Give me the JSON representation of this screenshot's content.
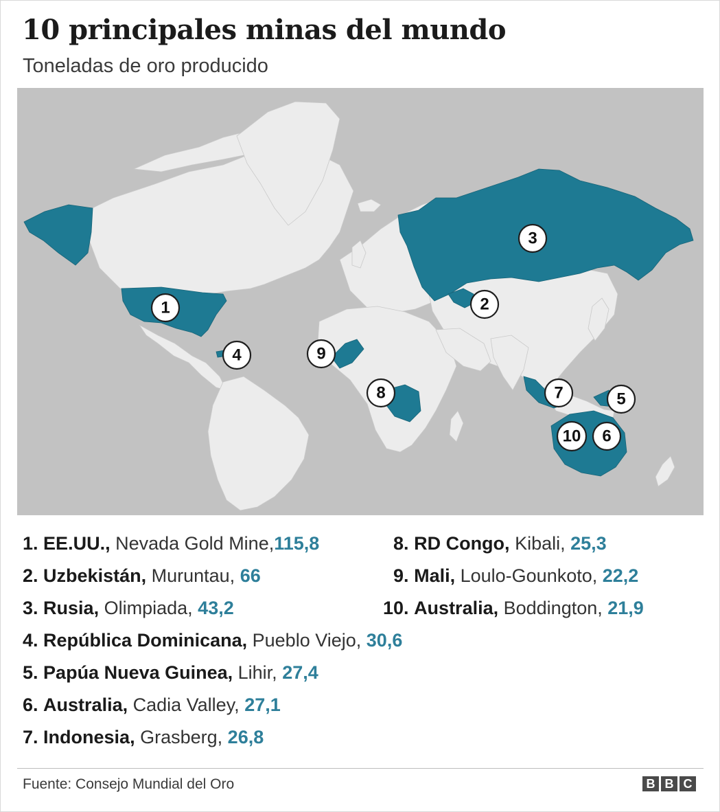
{
  "title": "10 principales minas del mundo",
  "subtitle": "Toneladas de oro producido",
  "colors": {
    "ocean": "#c2c2c2",
    "land": "#ececec",
    "highlight": "#1e7a93",
    "value_text": "#2e7f9a"
  },
  "map": {
    "highlighted_countries": [
      "EE.UU.",
      "Uzbekistán",
      "Rusia",
      "República Dominicana",
      "Papúa Nueva Guinea",
      "Australia",
      "Indonesia",
      "RD Congo",
      "Mali"
    ],
    "markers": [
      "1",
      "2",
      "3",
      "4",
      "5",
      "6",
      "7",
      "8",
      "9",
      "10"
    ]
  },
  "mines": [
    {
      "rank": "1.",
      "country": "EE.UU.,",
      "mine": "Nevada Gold Mine,",
      "value": "115,8"
    },
    {
      "rank": "2.",
      "country": "Uzbekistán,",
      "mine": "Muruntau,",
      "value": "66"
    },
    {
      "rank": "3.",
      "country": "Rusia,",
      "mine": "Olimpiada,",
      "value": "43,2"
    },
    {
      "rank": "4.",
      "country": "República Dominicana,",
      "mine": "Pueblo Viejo,",
      "value": "30,6"
    },
    {
      "rank": "5.",
      "country": "Papúa Nueva Guinea,",
      "mine": "Lihir,",
      "value": "27,4"
    },
    {
      "rank": "6.",
      "country": "Australia,",
      "mine": "Cadia Valley,",
      "value": "27,1"
    },
    {
      "rank": "7.",
      "country": "Indonesia,",
      "mine": "Grasberg,",
      "value": "26,8"
    },
    {
      "rank": "8.",
      "country": "RD Congo,",
      "mine": "Kibali,",
      "value": "25,3"
    },
    {
      "rank": "9.",
      "country": "Mali,",
      "mine": "Loulo-Gounkoto,",
      "value": "22,2"
    },
    {
      "rank": "10.",
      "country": "Australia,",
      "mine": "Boddington,",
      "value": "21,9"
    }
  ],
  "source": "Fuente: Consejo Mundial del Oro",
  "logo": [
    "B",
    "B",
    "C"
  ]
}
